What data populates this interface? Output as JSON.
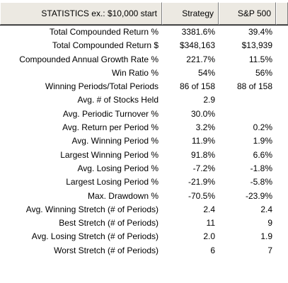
{
  "header": {
    "label": "STATISTICS  ex.: $10,000 start",
    "col_strategy": "Strategy",
    "col_sp500": "S&P 500"
  },
  "rows": [
    {
      "label": "Total Compounded Return %",
      "strategy": "3381.6%",
      "sp500": "39.4%"
    },
    {
      "label": "Total Compounded Return $",
      "strategy": "$348,163",
      "sp500": "$13,939"
    },
    {
      "label": "Compounded Annual Growth Rate %",
      "strategy": "221.7%",
      "sp500": "11.5%"
    },
    {
      "label": "Win Ratio %",
      "strategy": "54%",
      "sp500": "56%"
    },
    {
      "label": "Winning Periods/Total Periods",
      "strategy": "86 of 158",
      "sp500": "88 of 158"
    },
    {
      "label": "Avg. # of Stocks Held",
      "strategy": "2.9",
      "sp500": ""
    },
    {
      "label": "Avg. Periodic Turnover %",
      "strategy": "30.0%",
      "sp500": ""
    },
    {
      "label": "Avg. Return per Period %",
      "strategy": "3.2%",
      "sp500": "0.2%"
    },
    {
      "label": "Avg. Winning Period %",
      "strategy": "11.9%",
      "sp500": "1.9%"
    },
    {
      "label": "Largest Winning Period %",
      "strategy": "91.8%",
      "sp500": "6.6%"
    },
    {
      "label": "Avg. Losing Period %",
      "strategy": "-7.2%",
      "sp500": "-1.8%"
    },
    {
      "label": "Largest Losing Period %",
      "strategy": "-21.9%",
      "sp500": "-5.8%"
    },
    {
      "label": "Max. Drawdown %",
      "strategy": "-70.5%",
      "sp500": "-23.9%"
    },
    {
      "label": "Avg. Winning Stretch (# of Periods)",
      "strategy": "2.4",
      "sp500": "2.4"
    },
    {
      "label": "Best Stretch (# of Periods)",
      "strategy": "11",
      "sp500": "9"
    },
    {
      "label": "Avg. Losing Stretch (# of Periods)",
      "strategy": "2.0",
      "sp500": "1.9"
    },
    {
      "label": "Worst Stretch (# of Periods)",
      "strategy": "6",
      "sp500": "7"
    }
  ]
}
